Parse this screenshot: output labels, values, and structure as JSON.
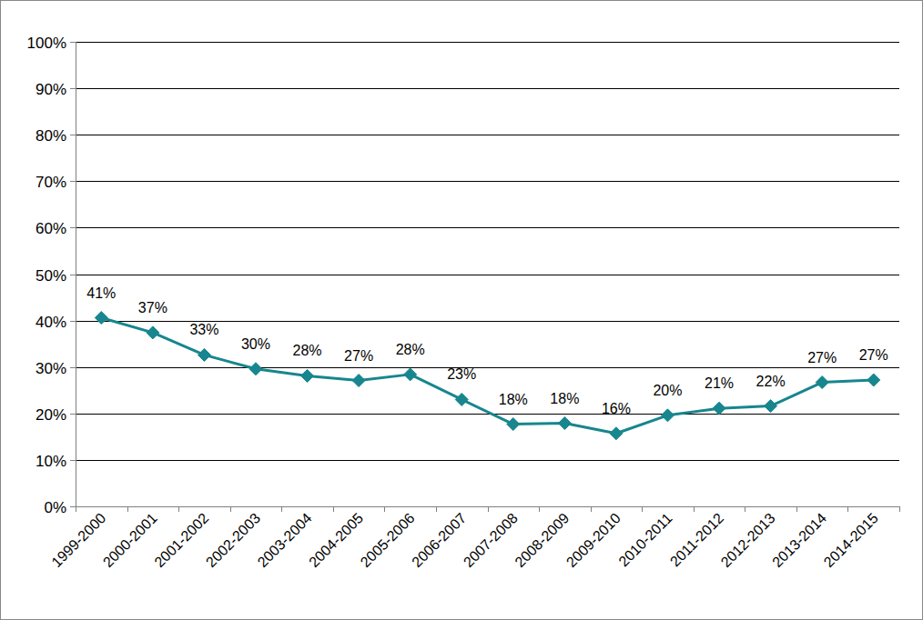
{
  "chart_data": {
    "type": "line",
    "categories": [
      "1999-2000",
      "2000-2001",
      "2001-2002",
      "2002-2003",
      "2003-2004",
      "2004-2005",
      "2005-2006",
      "2006-2007",
      "2007-2008",
      "2008-2009",
      "2009-2010",
      "2010-2011",
      "2011-2012",
      "2012-2013",
      "2013-2014",
      "2014-2015"
    ],
    "values": [
      40.6,
      37.4,
      32.6,
      29.6,
      28.1,
      27.1,
      28.4,
      23,
      17.7,
      17.9,
      15.7,
      19.6,
      21.1,
      21.6,
      26.7,
      27.2
    ],
    "value_labels": [
      "41%",
      "37%",
      "33%",
      "30%",
      "28%",
      "27%",
      "28%",
      "23%",
      "18%",
      "18%",
      "16%",
      "20%",
      "21%",
      "22%",
      "27%",
      "27%"
    ],
    "color": "#17868e",
    "marker": "diamond",
    "data_labels": true,
    "ylim": [
      0,
      100
    ],
    "yticks": [
      {
        "value": 0,
        "label": "0%"
      },
      {
        "value": 10,
        "label": "10%"
      },
      {
        "value": 20,
        "label": "20%"
      },
      {
        "value": 30,
        "label": "30%"
      },
      {
        "value": 40,
        "label": "40%"
      },
      {
        "value": 50,
        "label": "50%"
      },
      {
        "value": 60,
        "label": "60%"
      },
      {
        "value": 70,
        "label": "70%"
      },
      {
        "value": 80,
        "label": "80%"
      },
      {
        "value": 90,
        "label": "90%"
      },
      {
        "value": 100,
        "label": "100%"
      }
    ],
    "grid": true
  }
}
